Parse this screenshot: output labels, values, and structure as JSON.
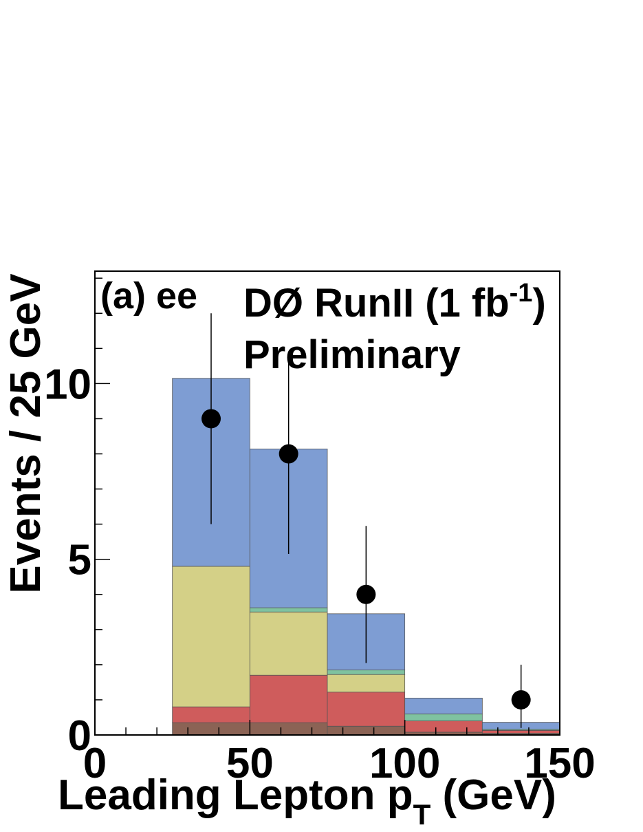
{
  "chart_data": {
    "type": "bar",
    "panel_label": "(a) ee",
    "title_main": "DØ RunII (1 fb",
    "title_sup": "-1",
    "title_close": ")",
    "subtitle": "Preliminary",
    "xlabel_main": "Leading Lepton p",
    "xlabel_sub": "T",
    "xlabel_unit": " (GeV)",
    "ylabel": "Events / 25 GeV",
    "xlim": [
      0,
      150
    ],
    "ylim": [
      0,
      13.2
    ],
    "x_ticks": [
      "0",
      "50",
      "100",
      "150"
    ],
    "y_ticks": [
      "0",
      "5",
      "10"
    ],
    "bin_edges": [
      25,
      50,
      75,
      100,
      125,
      150
    ],
    "stack": [
      {
        "color": "#8b6355",
        "values": [
          0.35,
          0.35,
          0.25,
          0.08,
          0.05
        ]
      },
      {
        "color": "#cf5c5c",
        "values": [
          0.45,
          1.35,
          0.97,
          0.32,
          0.08
        ]
      },
      {
        "color": "#d4d087",
        "values": [
          4.0,
          1.8,
          0.5,
          0.0,
          0.0
        ]
      },
      {
        "color": "#7fc2a0",
        "values": [
          0.0,
          0.12,
          0.13,
          0.2,
          0.03
        ]
      },
      {
        "color": "#7e9dd3",
        "values": [
          5.35,
          4.52,
          1.6,
          0.45,
          0.2
        ]
      }
    ],
    "data_points": [
      {
        "x": 37.5,
        "y": 9,
        "err_low": 3,
        "err_high": 3
      },
      {
        "x": 62.5,
        "y": 8,
        "err_low": 2.85,
        "err_high": 2.85
      },
      {
        "x": 87.5,
        "y": 4,
        "err_low": 1.95,
        "err_high": 1.95
      },
      {
        "x": 137.5,
        "y": 1,
        "err_low": 0.8,
        "err_high": 1.0
      }
    ],
    "grid": false
  }
}
